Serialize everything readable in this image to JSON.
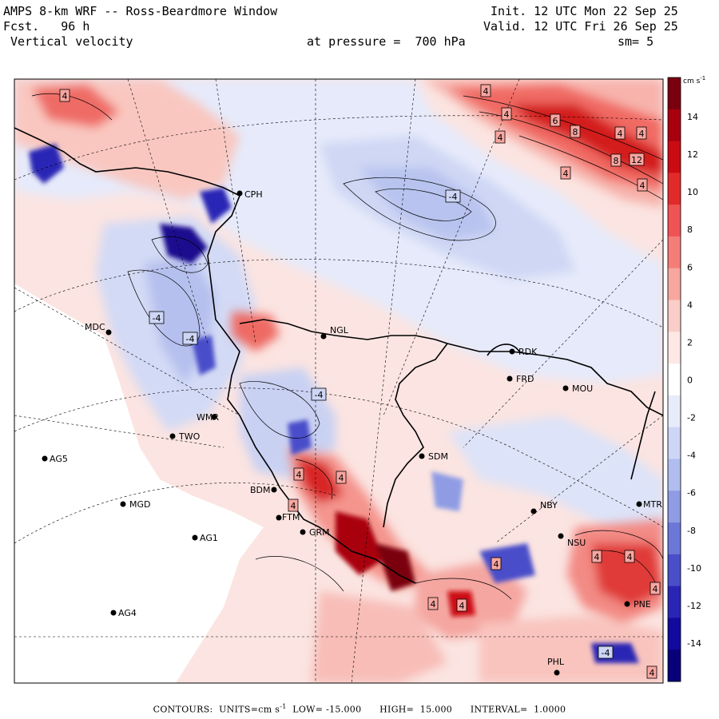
{
  "header": {
    "line1_left": "AMPS 8-km WRF -- Ross-Beardmore Window",
    "line2_left": "Fcst.   96 h",
    "line3_left": " Vertical velocity",
    "line1_right": "Init. 12 UTC Mon 22 Sep 25",
    "line2_right": "Valid. 12 UTC Fri 26 Sep 25",
    "pressure": "at pressure =  700 hPa",
    "smoothing": "sm= 5"
  },
  "colorbar": {
    "units_base": "cm s",
    "units_exp": "-1",
    "ticks": [
      "14",
      "12",
      "10",
      "8",
      "6",
      "4",
      "2",
      "0",
      "-2",
      "-4",
      "-6",
      "-8",
      "-10",
      "-12",
      "-14"
    ],
    "colors": [
      "#7a0010",
      "#a8000e",
      "#cc0a12",
      "#e32a2a",
      "#f05353",
      "#f57d78",
      "#f8a6a0",
      "#fbcdc8",
      "#fde8e5",
      "#ffffff",
      "#e7ebfa",
      "#cdd6f5",
      "#b0bdee",
      "#8f9ce4",
      "#6c78d8",
      "#4a4ec9",
      "#2a25b5",
      "#120a9e",
      "#08017a"
    ],
    "color_positive": "#e32a2a",
    "color_negative": "#2a25b5"
  },
  "stations": [
    {
      "id": "CPH",
      "label": "CPH"
    },
    {
      "id": "MDC",
      "label": "MDC"
    },
    {
      "id": "NGL",
      "label": "NGL"
    },
    {
      "id": "RDK",
      "label": "RDK"
    },
    {
      "id": "FRD",
      "label": "FRD"
    },
    {
      "id": "MOU",
      "label": "MOU"
    },
    {
      "id": "WMR",
      "label": "WMR"
    },
    {
      "id": "TWO",
      "label": "TWO"
    },
    {
      "id": "AG5",
      "label": "AG5"
    },
    {
      "id": "SDM",
      "label": "SDM"
    },
    {
      "id": "BDM",
      "label": "BDM"
    },
    {
      "id": "MGD",
      "label": "MGD"
    },
    {
      "id": "FTM",
      "label": "FTM"
    },
    {
      "id": "GRM",
      "label": "GRM"
    },
    {
      "id": "NBY",
      "label": "NBY"
    },
    {
      "id": "MTR",
      "label": "MTR"
    },
    {
      "id": "AG1",
      "label": "AG1"
    },
    {
      "id": "NSU",
      "label": "NSU"
    },
    {
      "id": "AG4",
      "label": "AG4"
    },
    {
      "id": "PNE",
      "label": "PNE"
    },
    {
      "id": "PHL",
      "label": "PHL"
    }
  ],
  "contour_labels": [
    "4",
    "4",
    "4",
    "4",
    "6",
    "8",
    "8",
    "4",
    "4",
    "4",
    "12",
    "4",
    "-4",
    "-4",
    "-4",
    "-4",
    "4",
    "4",
    "4",
    "4",
    "4",
    "4",
    "4",
    "4",
    "-4",
    "4",
    "4"
  ],
  "footer": {
    "contours_label": "CONTOURS:",
    "units_label": "UNITS=cm s",
    "units_exp": "-1",
    "low_label": "LOW=",
    "low_value": "-15.000",
    "high_label": "HIGH=",
    "high_value": "15.000",
    "interval_label": "INTERVAL=",
    "interval_value": "1.0000"
  }
}
